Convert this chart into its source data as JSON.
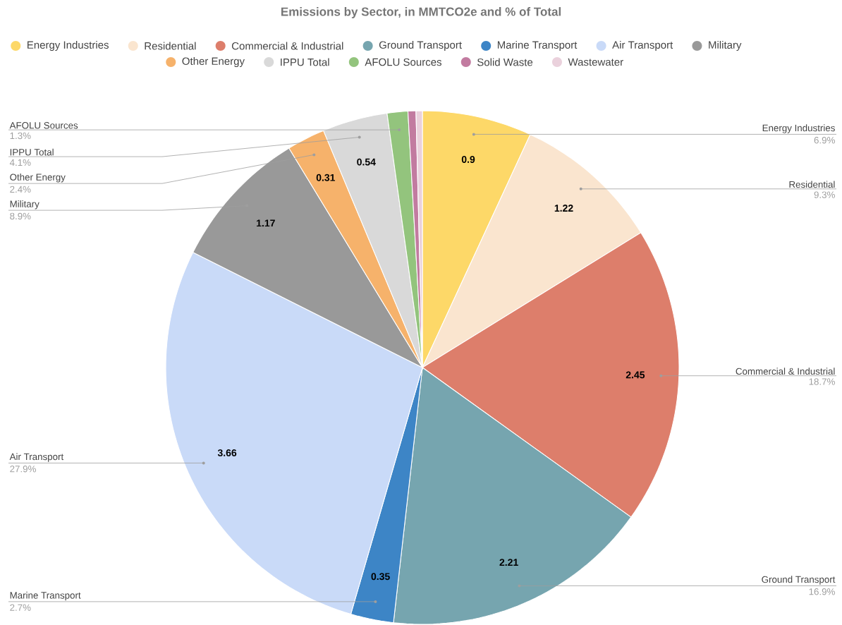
{
  "chart_data": {
    "type": "pie",
    "title": "Emissions by Sector, in MMTCO2e and % of Total",
    "categories": [
      "Energy Industries",
      "Residential",
      "Commercial & Industrial",
      "Ground Transport",
      "Marine Transport",
      "Air Transport",
      "Military",
      "Other Energy",
      "IPPU Total",
      "AFOLU Sources",
      "Solid Waste",
      "Wastewater"
    ],
    "values": [
      6.9,
      9.3,
      18.7,
      16.9,
      2.7,
      27.9,
      8.9,
      2.4,
      4.1,
      1.3,
      0.5,
      0.4
    ],
    "colors": [
      "#fdd868",
      "#fae5cf",
      "#dd7e6b",
      "#76a5af",
      "#3d85c6",
      "#c9daf8",
      "#999999",
      "#f6b26b",
      "#d9d9d9",
      "#93c47d",
      "#c27ba0",
      "#ead1dc"
    ],
    "value_labels": [
      "6.9%",
      "9.3%",
      "18.7%",
      "16.9%",
      "2.7%",
      "27.9%",
      "8.9%",
      "2.4%",
      "4.1%",
      "1.3%",
      null,
      null
    ],
    "annotations": [
      {
        "text": "0.9",
        "x": "Energy Industries"
      },
      {
        "text": "1.22",
        "x": "Residential"
      },
      {
        "text": "2.45",
        "x": "Commercial & Industrial"
      },
      {
        "text": "2.21",
        "x": "Ground Transport"
      },
      {
        "text": "0.35",
        "x": "Marine Transport"
      },
      {
        "text": "3.66",
        "x": "Air Transport"
      },
      {
        "text": "1.17",
        "x": "Military"
      },
      {
        "text": "0.31",
        "x": "Other Energy"
      },
      {
        "text": "0.54",
        "x": "IPPU Total"
      }
    ],
    "legend": "top"
  }
}
